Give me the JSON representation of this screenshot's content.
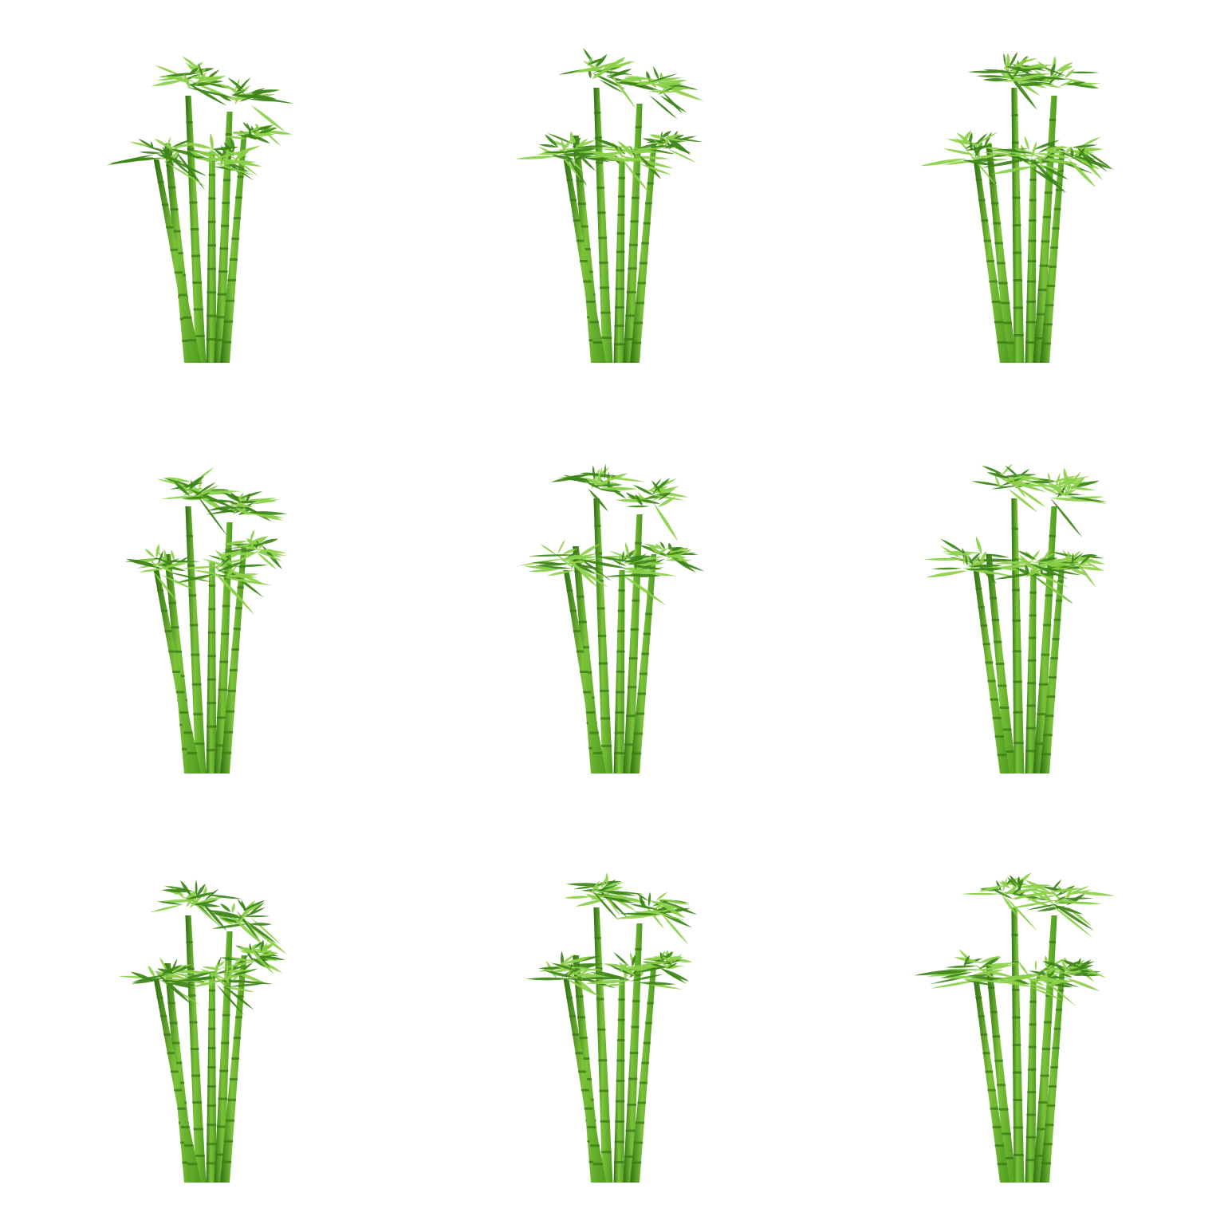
{
  "grid": {
    "rows": 3,
    "columns": 3
  },
  "colors": {
    "background": "#ffffff",
    "stalk_light": "#7cc23a",
    "stalk_mid": "#4f9a1f",
    "stalk_dark": "#2f6d12",
    "node": "#3a7a16",
    "leaf_light": "#8ccf4a",
    "leaf_dark": "#3d8418"
  },
  "items": [
    {
      "variant": 1,
      "icon": "bamboo-cluster-icon"
    },
    {
      "variant": 2,
      "icon": "bamboo-cluster-icon"
    },
    {
      "variant": 3,
      "icon": "bamboo-cluster-icon"
    },
    {
      "variant": 4,
      "icon": "bamboo-cluster-icon"
    },
    {
      "variant": 5,
      "icon": "bamboo-cluster-icon"
    },
    {
      "variant": 6,
      "icon": "bamboo-cluster-icon"
    },
    {
      "variant": 7,
      "icon": "bamboo-cluster-icon"
    },
    {
      "variant": 8,
      "icon": "bamboo-cluster-icon"
    },
    {
      "variant": 9,
      "icon": "bamboo-cluster-icon"
    }
  ]
}
